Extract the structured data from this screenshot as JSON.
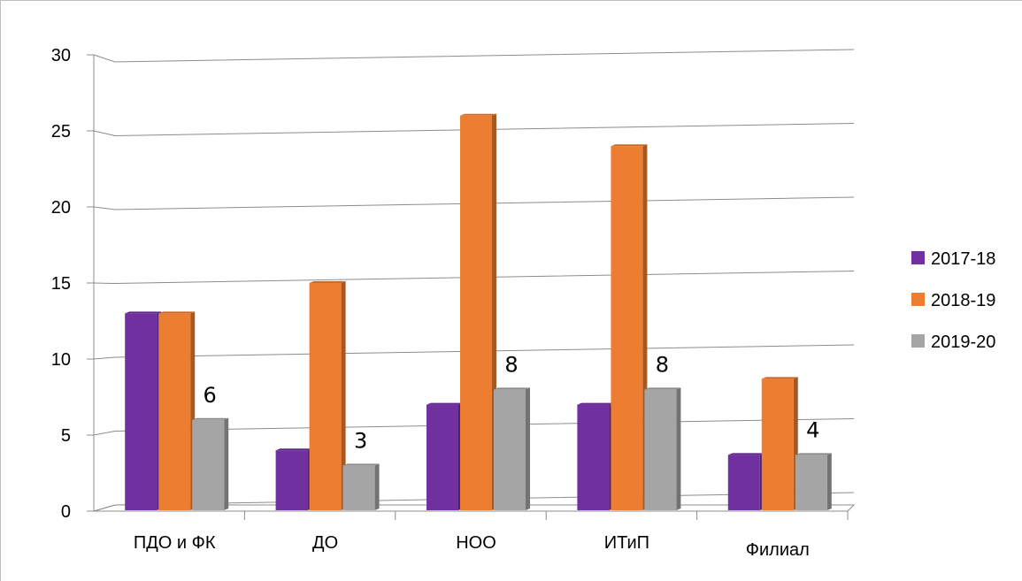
{
  "chart_data": {
    "type": "bar",
    "categories": [
      "ПДО и ФК",
      "ДО",
      "НОО",
      "ИТиП",
      "Филиал"
    ],
    "series": [
      {
        "name": "2017-18",
        "values": [
          13,
          4,
          7,
          7,
          3.7
        ],
        "color": "#7030a0"
      },
      {
        "name": "2018-19",
        "values": [
          13,
          15,
          26,
          24,
          8.7
        ],
        "color": "#ed7d31"
      },
      {
        "name": "2019-20",
        "values": [
          6,
          3,
          8,
          8,
          3.7
        ],
        "color": "#a5a5a5"
      }
    ],
    "data_labels": {
      "series": "2019-20",
      "labels": [
        "6",
        "3",
        "8",
        "8",
        "4"
      ]
    },
    "ylim": [
      0,
      30
    ],
    "y_ticks": [
      "0",
      "5",
      "10",
      "15",
      "20",
      "25",
      "30"
    ],
    "title": "",
    "xlabel": "",
    "ylabel": "",
    "grid": true,
    "legend_position": "right"
  }
}
